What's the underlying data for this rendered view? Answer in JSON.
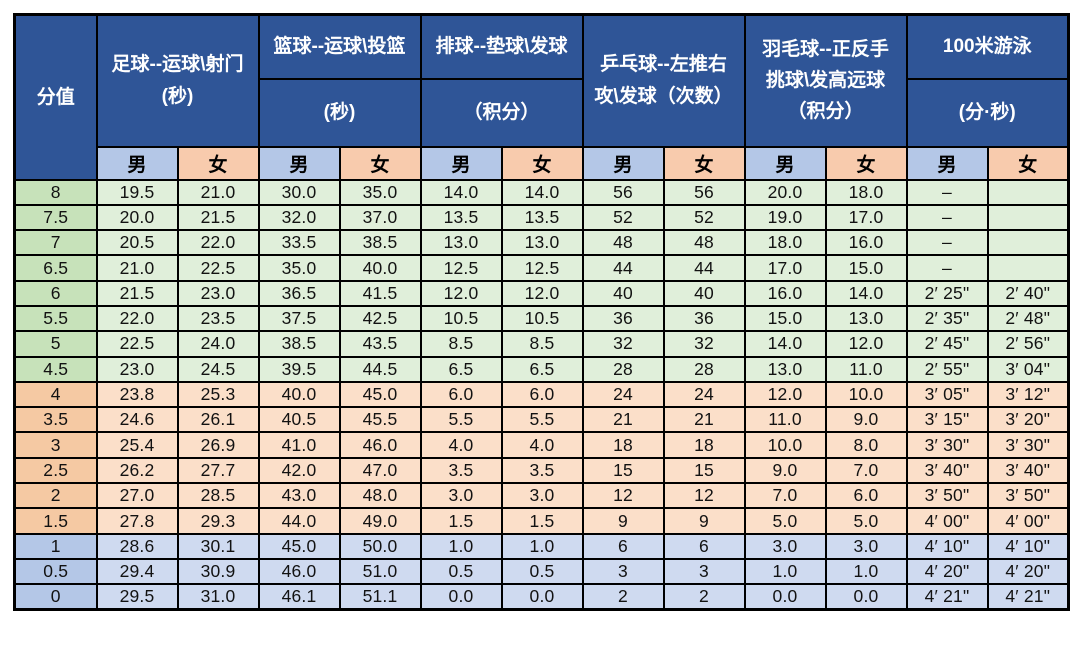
{
  "colors": {
    "header_blue": "#2F5597",
    "header_text": "#FFFFFF",
    "male_blue": "#B4C7E7",
    "female_peach": "#F8CBAD",
    "green_dark": "#C7E2BA",
    "green_light": "#E0EFDA",
    "orange_dark": "#F5C9A3",
    "orange_light": "#FBDFC9",
    "blue_dark": "#B4C7E7",
    "blue_light": "#CFDAF0",
    "border_black": "#000000"
  },
  "table": {
    "score_header": "分值",
    "groups": [
      {
        "id": "football",
        "title": "足球--运球\\射门\n(秒)"
      },
      {
        "id": "basketball",
        "title": "篮球--运球\\投篮",
        "unit": "(秒)"
      },
      {
        "id": "volleyball",
        "title": "排球--垫球\\发球",
        "unit": "（积分）"
      },
      {
        "id": "table-tennis",
        "title": "乒乓球--左推右\n攻\\发球（次数）"
      },
      {
        "id": "badminton",
        "title": "羽毛球--正反手\n挑球\\发高远球\n（积分）"
      },
      {
        "id": "swimming",
        "title": "100米游泳",
        "unit": "(分·秒)"
      }
    ],
    "gender_labels": {
      "male": "男",
      "female": "女"
    },
    "rows": [
      {
        "score": "8",
        "band": "green",
        "cells": [
          "19.5",
          "21.0",
          "30.0",
          "35.0",
          "14.0",
          "14.0",
          "56",
          "56",
          "20.0",
          "18.0",
          "–",
          ""
        ]
      },
      {
        "score": "7.5",
        "band": "green",
        "cells": [
          "20.0",
          "21.5",
          "32.0",
          "37.0",
          "13.5",
          "13.5",
          "52",
          "52",
          "19.0",
          "17.0",
          "–",
          ""
        ]
      },
      {
        "score": "7",
        "band": "green",
        "cells": [
          "20.5",
          "22.0",
          "33.5",
          "38.5",
          "13.0",
          "13.0",
          "48",
          "48",
          "18.0",
          "16.0",
          "–",
          ""
        ]
      },
      {
        "score": "6.5",
        "band": "green",
        "cells": [
          "21.0",
          "22.5",
          "35.0",
          "40.0",
          "12.5",
          "12.5",
          "44",
          "44",
          "17.0",
          "15.0",
          "–",
          ""
        ]
      },
      {
        "score": "6",
        "band": "green",
        "cells": [
          "21.5",
          "23.0",
          "36.5",
          "41.5",
          "12.0",
          "12.0",
          "40",
          "40",
          "16.0",
          "14.0",
          "2′ 25\"",
          "2′ 40\""
        ]
      },
      {
        "score": "5.5",
        "band": "green",
        "cells": [
          "22.0",
          "23.5",
          "37.5",
          "42.5",
          "10.5",
          "10.5",
          "36",
          "36",
          "15.0",
          "13.0",
          "2′ 35\"",
          "2′ 48\""
        ]
      },
      {
        "score": "5",
        "band": "green",
        "cells": [
          "22.5",
          "24.0",
          "38.5",
          "43.5",
          "8.5",
          "8.5",
          "32",
          "32",
          "14.0",
          "12.0",
          "2′ 45\"",
          "2′ 56\""
        ]
      },
      {
        "score": "4.5",
        "band": "green",
        "cells": [
          "23.0",
          "24.5",
          "39.5",
          "44.5",
          "6.5",
          "6.5",
          "28",
          "28",
          "13.0",
          "11.0",
          "2′ 55\"",
          "3′ 04\""
        ]
      },
      {
        "score": "4",
        "band": "orange",
        "cells": [
          "23.8",
          "25.3",
          "40.0",
          "45.0",
          "6.0",
          "6.0",
          "24",
          "24",
          "12.0",
          "10.0",
          "3′ 05\"",
          "3′ 12\""
        ]
      },
      {
        "score": "3.5",
        "band": "orange",
        "cells": [
          "24.6",
          "26.1",
          "40.5",
          "45.5",
          "5.5",
          "5.5",
          "21",
          "21",
          "11.0",
          "9.0",
          "3′ 15\"",
          "3′ 20\""
        ]
      },
      {
        "score": "3",
        "band": "orange",
        "cells": [
          "25.4",
          "26.9",
          "41.0",
          "46.0",
          "4.0",
          "4.0",
          "18",
          "18",
          "10.0",
          "8.0",
          "3′ 30\"",
          "3′ 30\""
        ]
      },
      {
        "score": "2.5",
        "band": "orange",
        "cells": [
          "26.2",
          "27.7",
          "42.0",
          "47.0",
          "3.5",
          "3.5",
          "15",
          "15",
          "9.0",
          "7.0",
          "3′ 40\"",
          "3′ 40\""
        ]
      },
      {
        "score": "2",
        "band": "orange",
        "cells": [
          "27.0",
          "28.5",
          "43.0",
          "48.0",
          "3.0",
          "3.0",
          "12",
          "12",
          "7.0",
          "6.0",
          "3′ 50\"",
          "3′ 50\""
        ]
      },
      {
        "score": "1.5",
        "band": "orange",
        "cells": [
          "27.8",
          "29.3",
          "44.0",
          "49.0",
          "1.5",
          "1.5",
          "9",
          "9",
          "5.0",
          "5.0",
          "4′ 00\"",
          "4′ 00\""
        ]
      },
      {
        "score": "1",
        "band": "blue",
        "cells": [
          "28.6",
          "30.1",
          "45.0",
          "50.0",
          "1.0",
          "1.0",
          "6",
          "6",
          "3.0",
          "3.0",
          "4′ 10\"",
          "4′ 10\""
        ]
      },
      {
        "score": "0.5",
        "band": "blue",
        "cells": [
          "29.4",
          "30.9",
          "46.0",
          "51.0",
          "0.5",
          "0.5",
          "3",
          "3",
          "1.0",
          "1.0",
          "4′ 20\"",
          "4′ 20\""
        ]
      },
      {
        "score": "0",
        "band": "blue",
        "cells": [
          "29.5",
          "31.0",
          "46.1",
          "51.1",
          "0.0",
          "0.0",
          "2",
          "2",
          "0.0",
          "0.0",
          "4′ 21\"",
          "4′ 21\""
        ]
      }
    ]
  }
}
